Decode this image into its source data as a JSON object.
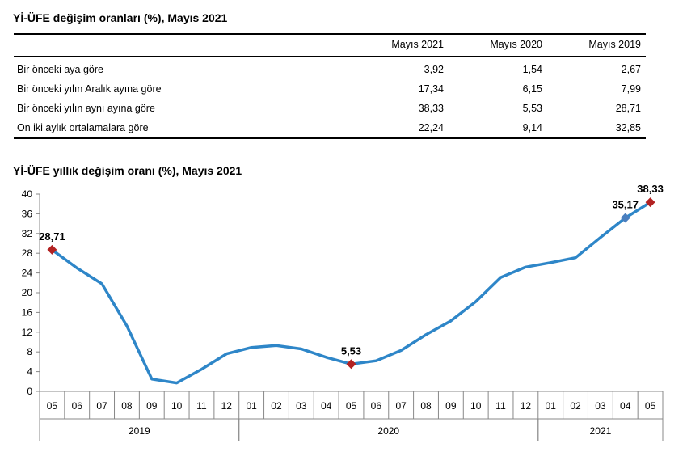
{
  "table": {
    "title": "Yİ-ÜFE değişim oranları (%), Mayıs 2021",
    "columns": [
      "Mayıs 2021",
      "Mayıs 2020",
      "Mayıs 2019"
    ],
    "rows": [
      {
        "label": "Bir önceki aya göre",
        "values": [
          "3,92",
          "1,54",
          "2,67"
        ]
      },
      {
        "label": "Bir önceki yılın Aralık ayına göre",
        "values": [
          "17,34",
          "6,15",
          "7,99"
        ]
      },
      {
        "label": "Bir önceki yılın aynı ayına göre",
        "values": [
          "38,33",
          "5,53",
          "28,71"
        ]
      },
      {
        "label": "On iki aylık ortalamalara göre",
        "values": [
          "22,24",
          "9,14",
          "32,85"
        ]
      }
    ]
  },
  "chart_data": {
    "type": "line",
    "title": "Yİ-ÜFE yıllık değişim oranı (%), Mayıs 2021",
    "x": [
      "05",
      "06",
      "07",
      "08",
      "09",
      "10",
      "11",
      "12",
      "01",
      "02",
      "03",
      "04",
      "05",
      "06",
      "07",
      "08",
      "09",
      "10",
      "11",
      "12",
      "01",
      "02",
      "03",
      "04",
      "05"
    ],
    "year_groups": [
      {
        "label": "2019",
        "start": 0,
        "count": 8
      },
      {
        "label": "2020",
        "start": 8,
        "count": 12
      },
      {
        "label": "2021",
        "start": 20,
        "count": 5
      }
    ],
    "series": [
      {
        "values": [
          28.71,
          25.0,
          21.8,
          13.3,
          2.5,
          1.7,
          4.5,
          7.6,
          8.9,
          9.3,
          8.6,
          6.9,
          5.53,
          6.2,
          8.3,
          11.5,
          14.3,
          18.2,
          23.1,
          25.2,
          26.1,
          27.1,
          31.2,
          35.17,
          38.33
        ],
        "color": "#2e86c8"
      }
    ],
    "highlights": [
      {
        "index": 0,
        "label": "28,71",
        "color": "#b22222"
      },
      {
        "index": 12,
        "label": "5,53",
        "color": "#b22222"
      },
      {
        "index": 23,
        "label": "35,17",
        "color": "#4a7fbf"
      },
      {
        "index": 24,
        "label": "38,33",
        "color": "#b22222"
      }
    ],
    "yticks": [
      0,
      4,
      8,
      12,
      16,
      20,
      24,
      28,
      32,
      36,
      40
    ],
    "ylim": [
      0,
      40
    ],
    "grid": false
  }
}
